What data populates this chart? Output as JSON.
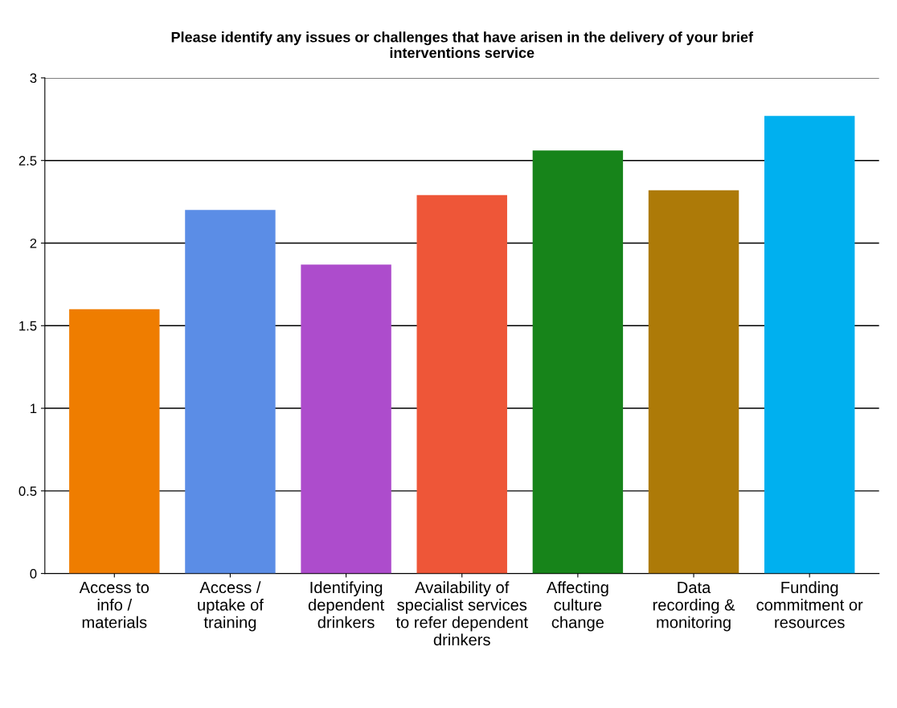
{
  "chart_data": {
    "type": "bar",
    "title": "Please identify any issues or challenges that have arisen in the delivery of your brief\ninterventions service",
    "categories": [
      "Access to\ninfo /\nmaterials",
      "Access /\nuptake of\ntraining",
      "Identifying\ndependent\ndrinkers",
      "Availability of\nspecialist services\nto refer dependent\ndrinkers",
      "Affecting\nculture\nchange",
      "Data\nrecording &\nmonitoring",
      "Funding\ncommitment or\nresources"
    ],
    "values": [
      1.6,
      2.2,
      1.87,
      2.29,
      2.56,
      2.32,
      2.77
    ],
    "colors": [
      "#ef7d00",
      "#5b8de6",
      "#ad4ccc",
      "#ee5638",
      "#17841a",
      "#ad7a08",
      "#00b0ef"
    ],
    "ylim": [
      0,
      3
    ],
    "yticks": [
      0,
      0.5,
      1,
      1.5,
      2,
      2.5,
      3
    ],
    "grid": "y"
  }
}
